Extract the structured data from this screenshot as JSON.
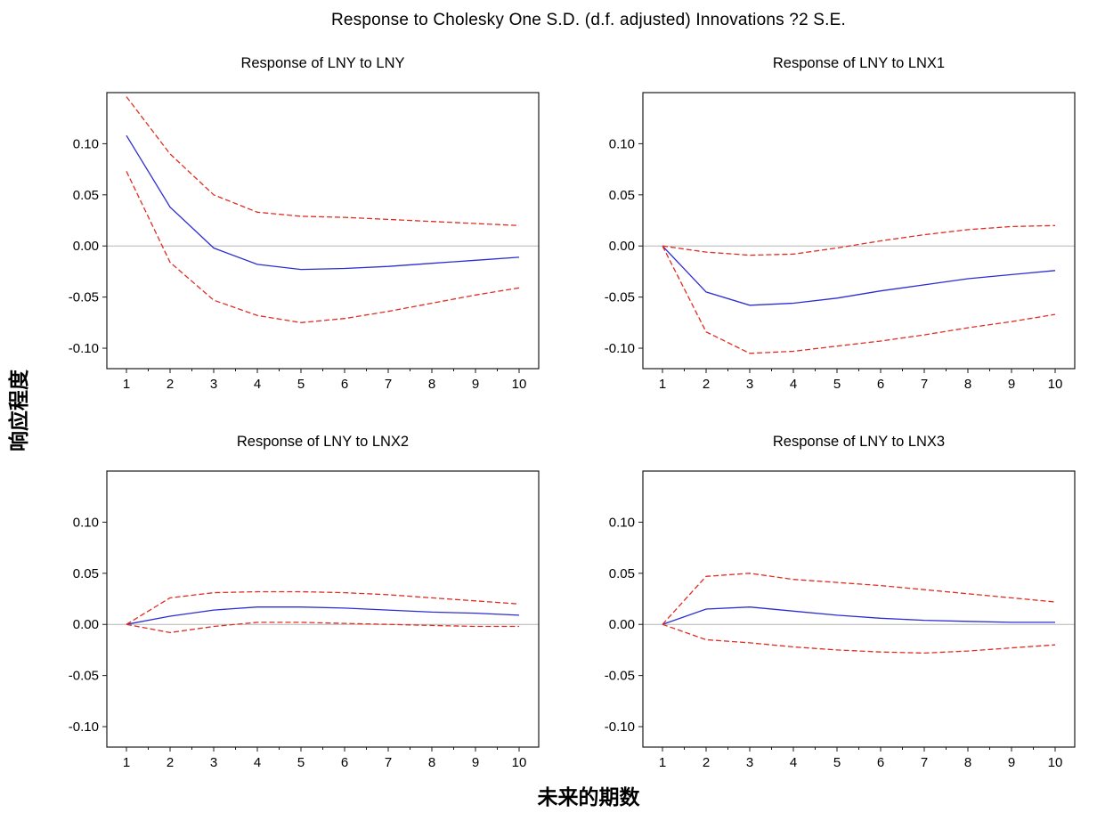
{
  "title": "Response to Cholesky One S.D. (d.f. adjusted) Innovations ?2 S.E.",
  "ylabel": "响应程度",
  "xlabel": "未来的期数",
  "colors": {
    "center": "#2d2dd2",
    "band": "#e02d22",
    "zero": "#b5b5b5",
    "box": "#1a1a1a"
  },
  "chart_data": [
    {
      "type": "line",
      "title": "Response of LNY to LNY",
      "x": [
        1,
        2,
        3,
        4,
        5,
        6,
        7,
        8,
        9,
        10
      ],
      "ylim": [
        -0.12,
        0.15
      ],
      "yticks": [
        0.1,
        0.05,
        0.0,
        -0.05,
        -0.1
      ],
      "grid": false,
      "legend": "none",
      "series": [
        {
          "name": "response",
          "style": "solid",
          "color": "center",
          "values": [
            0.108,
            0.038,
            -0.002,
            -0.018,
            -0.023,
            -0.022,
            -0.02,
            -0.017,
            -0.014,
            -0.011
          ]
        },
        {
          "name": "upper-2se",
          "style": "dashed",
          "color": "band",
          "values": [
            0.146,
            0.09,
            0.05,
            0.033,
            0.029,
            0.028,
            0.026,
            0.024,
            0.022,
            0.02
          ]
        },
        {
          "name": "lower-2se",
          "style": "dashed",
          "color": "band",
          "values": [
            0.073,
            -0.016,
            -0.053,
            -0.068,
            -0.075,
            -0.071,
            -0.064,
            -0.056,
            -0.048,
            -0.041
          ]
        }
      ]
    },
    {
      "type": "line",
      "title": "Response of LNY to LNX1",
      "x": [
        1,
        2,
        3,
        4,
        5,
        6,
        7,
        8,
        9,
        10
      ],
      "ylim": [
        -0.12,
        0.15
      ],
      "yticks": [
        0.1,
        0.05,
        0.0,
        -0.05,
        -0.1
      ],
      "grid": false,
      "legend": "none",
      "series": [
        {
          "name": "response",
          "style": "solid",
          "color": "center",
          "values": [
            0.0,
            -0.045,
            -0.058,
            -0.056,
            -0.051,
            -0.044,
            -0.038,
            -0.032,
            -0.028,
            -0.024
          ]
        },
        {
          "name": "upper-2se",
          "style": "dashed",
          "color": "band",
          "values": [
            0.0,
            -0.006,
            -0.009,
            -0.008,
            -0.002,
            0.005,
            0.011,
            0.016,
            0.019,
            0.02
          ]
        },
        {
          "name": "lower-2se",
          "style": "dashed",
          "color": "band",
          "values": [
            0.0,
            -0.084,
            -0.105,
            -0.103,
            -0.098,
            -0.093,
            -0.087,
            -0.08,
            -0.074,
            -0.067
          ]
        }
      ]
    },
    {
      "type": "line",
      "title": "Response of LNY to LNX2",
      "x": [
        1,
        2,
        3,
        4,
        5,
        6,
        7,
        8,
        9,
        10
      ],
      "ylim": [
        -0.12,
        0.15
      ],
      "yticks": [
        0.1,
        0.05,
        0.0,
        -0.05,
        -0.1
      ],
      "grid": false,
      "legend": "none",
      "series": [
        {
          "name": "response",
          "style": "solid",
          "color": "center",
          "values": [
            0.0,
            0.008,
            0.014,
            0.017,
            0.017,
            0.016,
            0.014,
            0.012,
            0.011,
            0.009
          ]
        },
        {
          "name": "upper-2se",
          "style": "dashed",
          "color": "band",
          "values": [
            0.0,
            0.026,
            0.031,
            0.032,
            0.032,
            0.031,
            0.029,
            0.026,
            0.023,
            0.02
          ]
        },
        {
          "name": "lower-2se",
          "style": "dashed",
          "color": "band",
          "values": [
            0.0,
            -0.008,
            -0.002,
            0.002,
            0.002,
            0.001,
            0.0,
            -0.001,
            -0.002,
            -0.002
          ]
        }
      ]
    },
    {
      "type": "line",
      "title": "Response of LNY to LNX3",
      "x": [
        1,
        2,
        3,
        4,
        5,
        6,
        7,
        8,
        9,
        10
      ],
      "ylim": [
        -0.12,
        0.15
      ],
      "yticks": [
        0.1,
        0.05,
        0.0,
        -0.05,
        -0.1
      ],
      "grid": false,
      "legend": "none",
      "series": [
        {
          "name": "response",
          "style": "solid",
          "color": "center",
          "values": [
            0.0,
            0.015,
            0.017,
            0.013,
            0.009,
            0.006,
            0.004,
            0.003,
            0.002,
            0.002
          ]
        },
        {
          "name": "upper-2se",
          "style": "dashed",
          "color": "band",
          "values": [
            0.0,
            0.047,
            0.05,
            0.044,
            0.041,
            0.038,
            0.034,
            0.03,
            0.026,
            0.022
          ]
        },
        {
          "name": "lower-2se",
          "style": "dashed",
          "color": "band",
          "values": [
            0.0,
            -0.015,
            -0.018,
            -0.022,
            -0.025,
            -0.027,
            -0.028,
            -0.026,
            -0.023,
            -0.02
          ]
        }
      ]
    }
  ]
}
